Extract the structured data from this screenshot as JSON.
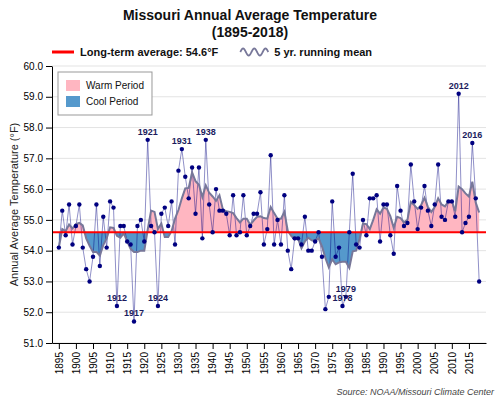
{
  "chart_data": {
    "type": "line",
    "title": "Missouri Annual Average Temperature\n(1895-2018)",
    "y_label": "Annual Average Temperature (°F)",
    "source": "Source: NOAA/Missouri Climate Center",
    "x": [
      1895,
      1896,
      1897,
      1898,
      1899,
      1900,
      1901,
      1902,
      1903,
      1904,
      1905,
      1906,
      1907,
      1908,
      1909,
      1910,
      1911,
      1912,
      1913,
      1914,
      1915,
      1916,
      1917,
      1918,
      1919,
      1920,
      1921,
      1922,
      1923,
      1924,
      1925,
      1926,
      1927,
      1928,
      1929,
      1930,
      1931,
      1932,
      1933,
      1934,
      1935,
      1936,
      1937,
      1938,
      1939,
      1940,
      1941,
      1942,
      1943,
      1944,
      1945,
      1946,
      1947,
      1948,
      1949,
      1950,
      1951,
      1952,
      1953,
      1954,
      1955,
      1956,
      1957,
      1958,
      1959,
      1960,
      1961,
      1962,
      1963,
      1964,
      1965,
      1966,
      1967,
      1968,
      1969,
      1970,
      1971,
      1972,
      1973,
      1974,
      1975,
      1976,
      1977,
      1978,
      1979,
      1980,
      1981,
      1982,
      1983,
      1984,
      1985,
      1986,
      1987,
      1988,
      1989,
      1990,
      1991,
      1992,
      1993,
      1994,
      1995,
      1996,
      1997,
      1998,
      1999,
      2000,
      2001,
      2002,
      2003,
      2004,
      2005,
      2006,
      2007,
      2008,
      2009,
      2010,
      2011,
      2012,
      2013,
      2014,
      2015,
      2016,
      2017,
      2018
    ],
    "series": [
      {
        "color": "#000080",
        "marker": "circle",
        "values": [
          54.1,
          55.3,
          54.5,
          55.5,
          54.2,
          54.8,
          55.5,
          54.1,
          53.4,
          53.0,
          53.8,
          55.5,
          53.5,
          55.1,
          54.1,
          55.6,
          55.4,
          52.2,
          54.8,
          54.8,
          54.3,
          54.2,
          51.7,
          54.8,
          55.0,
          54.3,
          57.6,
          54.8,
          54.6,
          52.2,
          55.2,
          55.4,
          54.8,
          55.6,
          54.2,
          56.6,
          57.3,
          56.4,
          55.7,
          56.7,
          55.2,
          56.7,
          54.4,
          57.6,
          55.5,
          54.6,
          56.0,
          55.3,
          55.3,
          55.2,
          54.5,
          55.8,
          54.5,
          54.6,
          55.8,
          54.5,
          54.8,
          55.2,
          55.2,
          55.9,
          54.2,
          54.7,
          57.1,
          54.2,
          55.0,
          54.2,
          55.8,
          54.0,
          53.4,
          54.4,
          54.4,
          54.2,
          55.1,
          54.0,
          54.0,
          54.3,
          54.6,
          53.8,
          52.1,
          52.5,
          55.6,
          53.8,
          54.1,
          52.2,
          52.5,
          54.6,
          56.5,
          54.2,
          54.1,
          55.0,
          54.5,
          55.7,
          55.7,
          55.8,
          54.3,
          55.5,
          55.5,
          54.5,
          53.9,
          56.1,
          55.3,
          54.8,
          54.9,
          56.8,
          55.6,
          54.7,
          55.4,
          56.1,
          55.3,
          54.8,
          55.5,
          56.8,
          55.1,
          55.0,
          55.6,
          55.6,
          55.1,
          59.1,
          54.6,
          54.9,
          55.1,
          57.5,
          55.7,
          53.0
        ]
      },
      {
        "name": "5 yr. running mean",
        "color": "#777799",
        "values": [
          54.1,
          54.7,
          54.63333333333333,
          54.85,
          54.72,
          54.86,
          54.9,
          54.82,
          54.4,
          54.16,
          53.96,
          53.96,
          53.84,
          54.18,
          54.4,
          54.76,
          54.74,
          54.48,
          54.42,
          54.56,
          54.3,
          54.06,
          53.96,
          53.96,
          54.0,
          54.0,
          54.68,
          55.3,
          55.26,
          54.7,
          54.88,
          54.44,
          54.44,
          54.64,
          55.04,
          55.32,
          55.7,
          56.02,
          56.04,
          56.54,
          56.26,
          56.14,
          55.74,
          56.12,
          55.88,
          55.76,
          55.62,
          55.8,
          55.34,
          55.28,
          55.26,
          55.22,
          55.06,
          54.92,
          55.04,
          55.04,
          54.84,
          54.98,
          55.1,
          55.12,
          55.06,
          55.04,
          55.42,
          55.22,
          55.04,
          55.04,
          55.26,
          54.64,
          54.48,
          54.36,
          54.4,
          54.08,
          54.3,
          54.42,
          54.34,
          54.32,
          54.4,
          54.14,
          53.76,
          53.46,
          53.72,
          53.56,
          53.62,
          53.64,
          53.64,
          53.44,
          53.98,
          54.0,
          54.38,
          54.88,
          54.86,
          54.7,
          55.0,
          55.34,
          55.2,
          55.4,
          55.36,
          55.12,
          54.74,
          55.1,
          55.06,
          54.92,
          55.0,
          55.58,
          55.48,
          55.36,
          55.48,
          55.72,
          55.42,
          55.26,
          55.42,
          55.7,
          55.5,
          55.44,
          55.6,
          55.62,
          55.28,
          56.08,
          56.0,
          55.86,
          55.76,
          56.24,
          55.56,
          55.24
        ]
      }
    ],
    "reference_line": {
      "label": "Long-term average: 54.6°F",
      "value": 54.6,
      "color": "#FF0000"
    },
    "areas": [
      {
        "name": "Warm Period",
        "color": "#FFB6C1"
      },
      {
        "name": "Cool Period",
        "color": "#5599CC"
      }
    ],
    "annotations": [
      {
        "text": "1912",
        "x": 1912,
        "y": 52.2
      },
      {
        "text": "1917",
        "x": 1917,
        "y": 51.7
      },
      {
        "text": "1921",
        "x": 1921,
        "y": 57.6
      },
      {
        "text": "1924",
        "x": 1924,
        "y": 52.2
      },
      {
        "text": "1931",
        "x": 1931,
        "y": 57.3
      },
      {
        "text": "1938",
        "x": 1938,
        "y": 57.6
      },
      {
        "text": "1978",
        "x": 1978,
        "y": 52.2
      },
      {
        "text": "1979",
        "x": 1979,
        "y": 52.5
      },
      {
        "text": "2012",
        "x": 2012,
        "y": 59.1
      },
      {
        "text": "2016",
        "x": 2016,
        "y": 57.5
      }
    ],
    "xlim": [
      1893,
      2020
    ],
    "xticks": [
      1895,
      1900,
      1905,
      1910,
      1915,
      1920,
      1925,
      1930,
      1935,
      1940,
      1945,
      1950,
      1955,
      1960,
      1965,
      1970,
      1975,
      1980,
      1985,
      1990,
      1995,
      2000,
      2005,
      2010,
      2015
    ],
    "ylim": [
      51.0,
      60.0
    ],
    "yticks": [
      {
        "value": 51.0,
        "label": "51.0"
      },
      {
        "value": 52.0,
        "label": "52.0"
      },
      {
        "value": 53.0,
        "label": "53.0"
      },
      {
        "value": 54.0,
        "label": "54.0"
      },
      {
        "value": 55.0,
        "label": "55.0"
      },
      {
        "value": 56.0,
        "label": "56.0"
      },
      {
        "value": 57.0,
        "label": "57.0"
      },
      {
        "value": 58.0,
        "label": "58.0"
      },
      {
        "value": 59.0,
        "label": "59.0"
      },
      {
        "value": 60.0,
        "label": "60.0"
      }
    ],
    "grid": true,
    "legend": "upper left"
  }
}
